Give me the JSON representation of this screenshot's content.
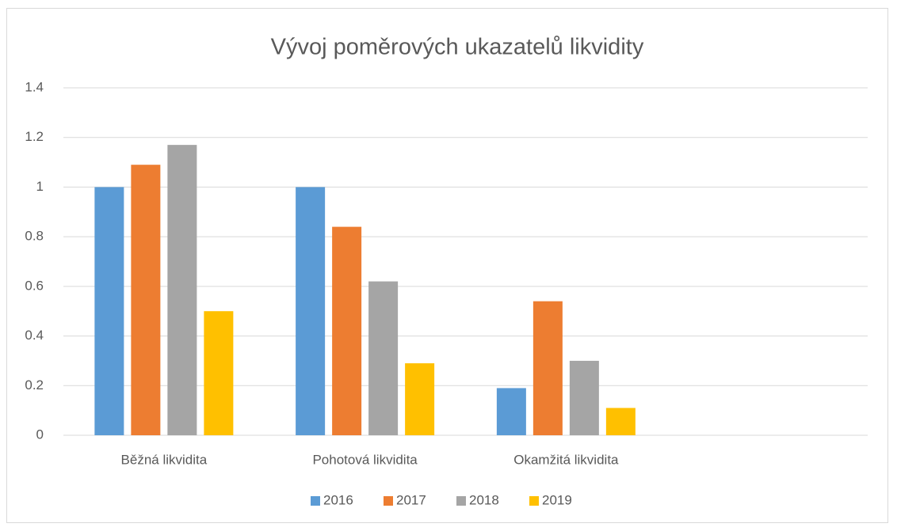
{
  "chart_data": {
    "type": "bar",
    "title": "Vývoj poměrových ukazatelů likvidity",
    "categories": [
      "Běžná likvidita",
      "Pohotová likvidita",
      "Okamžitá likvidita",
      null
    ],
    "series": [
      {
        "name": "2016",
        "color": "#5b9bd5",
        "values": [
          1,
          1,
          0.19,
          null
        ]
      },
      {
        "name": "2017",
        "color": "#ed7d31",
        "values": [
          1.09,
          0.84,
          0.54,
          null
        ]
      },
      {
        "name": "2018",
        "color": "#a5a5a5",
        "values": [
          1.17,
          0.62,
          0.3,
          null
        ]
      },
      {
        "name": "2019",
        "color": "#ffc000",
        "values": [
          0.5,
          0.29,
          0.11,
          null
        ]
      }
    ],
    "ylim": [
      0,
      1.4
    ],
    "yticks": [
      0,
      0.2,
      0.4,
      0.6,
      0.8,
      1,
      1.2,
      1.4
    ],
    "grid": true,
    "legend": "bottom"
  }
}
